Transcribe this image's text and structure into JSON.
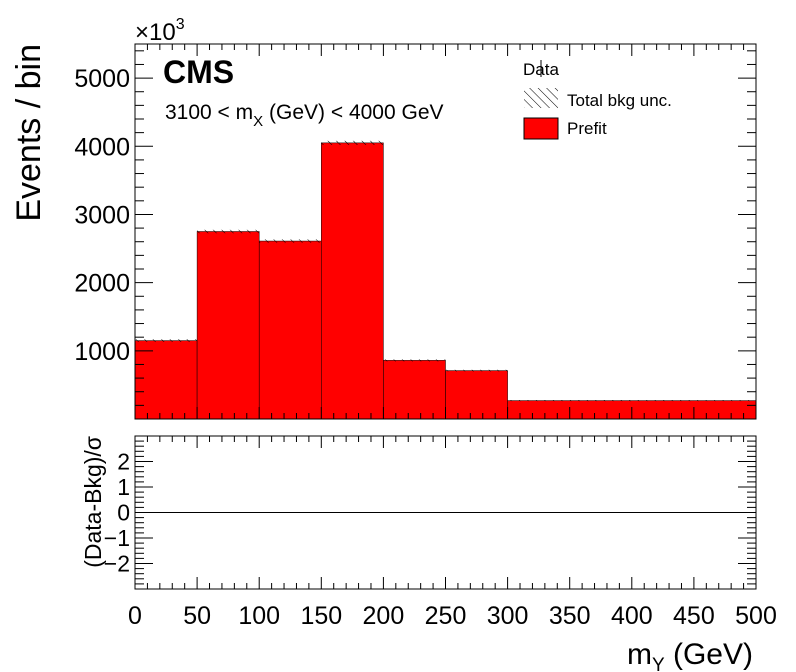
{
  "chart_data": [
    {
      "type": "bar",
      "panel": "main",
      "bin_edges": [
        0,
        50,
        100,
        150,
        200,
        250,
        300,
        500
      ],
      "values": [
        1150,
        2750,
        2610,
        4050,
        860,
        710,
        270
      ],
      "uncertainty": [
        20,
        25,
        25,
        30,
        15,
        12,
        8
      ],
      "xlim": [
        0,
        500
      ],
      "ylim": [
        0,
        5500
      ],
      "ylabel": "Events / bin",
      "y_multiplier": "×10",
      "y_multiplier_exp": "3",
      "yticks_labeled": [
        1000,
        2000,
        3000,
        4000,
        5000
      ],
      "fill_color": "#ff0000",
      "legend": [
        "Data",
        "Total bkg unc.",
        "Prefit"
      ],
      "legend_placement": "top-right",
      "experiment_label": "CMS",
      "region_text_prefix": "3100 < m",
      "region_text_sub": "X",
      "region_text_suffix": " (GeV) < 4000 GeV"
    },
    {
      "type": "line",
      "panel": "pull",
      "ylabel": "(Data-Bkg)/σ",
      "ylim": [
        -3,
        3
      ],
      "yticks_labeled": [
        -2,
        -1,
        0,
        1,
        2
      ],
      "reference_line": 0,
      "xlim": [
        0,
        500
      ],
      "xticks_labeled": [
        0,
        50,
        100,
        150,
        200,
        250,
        300,
        350,
        400,
        450,
        500
      ],
      "xlabel_main": "m",
      "xlabel_sub": "Y",
      "xlabel_unit": " (GeV)"
    }
  ]
}
